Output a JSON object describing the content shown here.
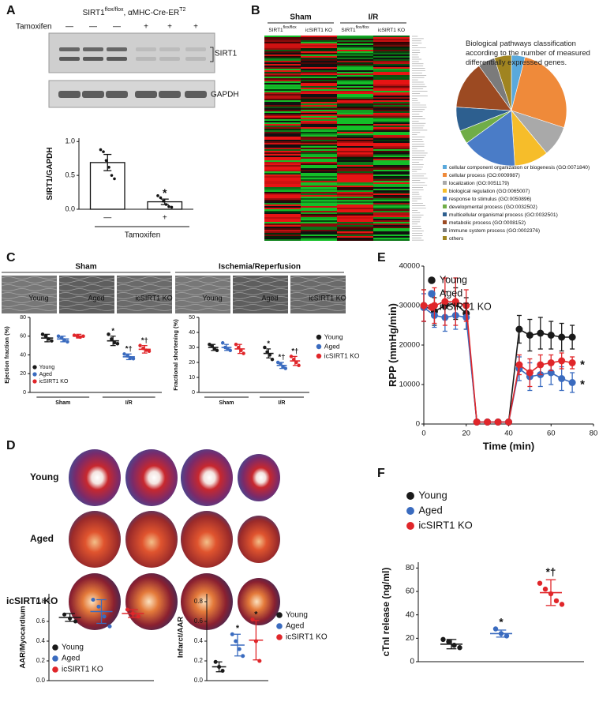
{
  "panel_labels": [
    "A",
    "B",
    "C",
    "D",
    "E",
    "F"
  ],
  "blot": {
    "header": [
      "SIRT1",
      "flox/flox",
      ", αMHC-Cre-ER",
      "T2"
    ],
    "tamoxifen_label": "Tamoxifen",
    "lanes": [
      "—",
      "—",
      "—",
      "+",
      "+",
      "+"
    ],
    "bands": [
      "SIRT1",
      "GAPDH"
    ]
  },
  "heatmap": {
    "groups": [
      "Sham",
      "I/R"
    ],
    "columns": [
      [
        "SIRT1",
        "flox/flox"
      ],
      [
        "icSIRT1 KO"
      ],
      [
        "SIRT1",
        "flox/flox"
      ],
      [
        "icSIRT1 KO"
      ]
    ]
  },
  "echo": {
    "groups": [
      "Sham",
      "Ischemia/Reperfusion"
    ],
    "labels": [
      "Young",
      "Aged",
      "icSIRT1 KO"
    ]
  },
  "hearts": {
    "rows": [
      "Young",
      "Aged",
      "icSIRT1 KO"
    ]
  },
  "chart_data": [
    {
      "type": "bar",
      "ylabel": "SIRT1/GAPDH",
      "xlabel": "Tamoxifen",
      "categories": [
        "—",
        "+"
      ],
      "values": [
        0.69,
        0.11
      ],
      "errors": [
        0.12,
        0.04
      ],
      "points": [
        [
          0.88,
          0.85,
          0.72,
          0.62,
          0.5,
          0.45
        ],
        [
          0.2,
          0.17,
          0.12,
          0.07,
          0.04,
          0.03
        ]
      ],
      "annotations": [
        null,
        "*"
      ],
      "color": "#ffffff",
      "ylim": [
        0,
        1.05
      ],
      "yticks": [
        {
          "value": 0,
          "label": "0.0"
        },
        0.5,
        {
          "value": 1,
          "label": "1.0"
        }
      ]
    },
    {
      "type": "pie",
      "title": "Biological pathways classification according to the number of measured differentially expressed genes.",
      "categories": [
        "cellular component organization or biogenesis (GO:0071840)",
        "cellular process (GO:0009987)",
        "localization (GO:0051179)",
        "biological regulation (GO:0065007)",
        "response to stimulus (GO:0050896)",
        "developmental process (GO:0032502)",
        "multicellular organismal process (GO:0032501)",
        "metabolic process (GO:0008152)",
        "immune system process (GO:0002376)",
        "others"
      ],
      "values": [
        4,
        26,
        9,
        10,
        16,
        4,
        7,
        14,
        5,
        5
      ],
      "colors": [
        "#5aa9dc",
        "#ef8a3a",
        "#a9a9a9",
        "#f6bd2a",
        "#4a7cc7",
        "#70ad47",
        "#2d5f8f",
        "#9c4a22",
        "#7b7b7b",
        "#a08420"
      ]
    },
    {
      "type": "dot",
      "ylabel": "Ejection fraction (%)",
      "categories": [
        "Sham",
        "I/R"
      ],
      "ylim": [
        0,
        80
      ],
      "yticks": [
        0,
        20,
        40,
        60,
        80
      ],
      "legend": "lower left",
      "series": [
        {
          "name": "Young",
          "color": "#1a1a1a",
          "values": [
            58,
            55
          ],
          "errors": [
            4,
            5
          ],
          "points": [
            [
              62,
              60,
              57,
              55
            ],
            [
              62,
              57,
              53,
              52
            ]
          ],
          "annotations": [
            null,
            "*"
          ]
        },
        {
          "name": "Aged",
          "color": "#3a6bbf",
          "values": [
            57,
            38
          ],
          "errors": [
            3,
            3
          ],
          "points": [
            [
              60,
              58,
              56,
              54
            ],
            [
              41,
              39,
              37,
              36
            ]
          ],
          "annotations": [
            null,
            "*†"
          ]
        },
        {
          "name": "icSIRT1 KO",
          "color": "#e0262a",
          "values": [
            60,
            46
          ],
          "errors": [
            2,
            4
          ],
          "points": [
            [
              61,
              60,
              59,
              60
            ],
            [
              50,
              47,
              45,
              44
            ]
          ],
          "annotations": [
            null,
            "*†"
          ]
        }
      ]
    },
    {
      "type": "dot",
      "ylabel": "Fractional shortening (%)",
      "categories": [
        "Sham",
        "I/R"
      ],
      "ylim": [
        0,
        50
      ],
      "yticks": [
        0,
        10,
        20,
        30,
        40,
        50
      ],
      "legend": "right",
      "series": [
        {
          "name": "Young",
          "color": "#1a1a1a",
          "values": [
            30,
            26
          ],
          "errors": [
            2,
            3
          ],
          "points": [
            [
              32,
              31,
              29,
              28
            ],
            [
              30,
              27,
              25,
              22
            ]
          ],
          "annotations": [
            null,
            "*"
          ]
        },
        {
          "name": "Aged",
          "color": "#3a6bbf",
          "values": [
            30,
            18
          ],
          "errors": [
            2,
            2
          ],
          "points": [
            [
              33,
              30,
              29,
              28
            ],
            [
              20,
              19,
              17,
              16
            ]
          ],
          "annotations": [
            null,
            "*†"
          ]
        },
        {
          "name": "icSIRT1 KO",
          "color": "#e0262a",
          "values": [
            29,
            21
          ],
          "errors": [
            3,
            3
          ],
          "points": [
            [
              32,
              30,
              28,
              26
            ],
            [
              24,
              22,
              20,
              18
            ]
          ],
          "annotations": [
            null,
            "*†"
          ]
        }
      ]
    },
    {
      "type": "dot",
      "ylabel": "AAR/Myocardium",
      "categories": [
        null
      ],
      "ylim": [
        0,
        0.88
      ],
      "yticks": [
        {
          "value": 0,
          "label": "0.0"
        },
        0.2,
        0.4,
        0.6,
        0.8
      ],
      "legend": "lower left",
      "series": [
        {
          "name": "Young",
          "color": "#1a1a1a",
          "values": [
            0.64
          ],
          "errors": [
            0.04
          ],
          "points": [
            [
              0.67,
              0.63,
              0.6
            ]
          ],
          "annotations": [
            null
          ]
        },
        {
          "name": "Aged",
          "color": "#3a6bbf",
          "values": [
            0.7
          ],
          "errors": [
            0.12
          ],
          "points": [
            [
              0.82,
              0.75,
              0.65,
              0.55
            ]
          ],
          "annotations": [
            null
          ]
        },
        {
          "name": "icSIRT1 KO",
          "color": "#e0262a",
          "values": [
            0.68
          ],
          "errors": [
            0.04
          ],
          "points": [
            [
              0.72,
              0.68,
              0.65
            ]
          ],
          "annotations": [
            null
          ]
        }
      ]
    },
    {
      "type": "dot",
      "ylabel": "Infarct/AAR",
      "categories": [
        null
      ],
      "ylim": [
        0,
        0.88
      ],
      "yticks": [
        {
          "value": 0,
          "label": "0.0"
        },
        0.2,
        0.4,
        0.6,
        0.8
      ],
      "legend": "right",
      "series": [
        {
          "name": "Young",
          "color": "#1a1a1a",
          "values": [
            0.14
          ],
          "errors": [
            0.05
          ],
          "points": [
            [
              0.19,
              0.14,
              0.1
            ]
          ],
          "annotations": [
            null
          ]
        },
        {
          "name": "Aged",
          "color": "#3a6bbf",
          "values": [
            0.36
          ],
          "errors": [
            0.11
          ],
          "points": [
            [
              0.47,
              0.4,
              0.32,
              0.25
            ]
          ],
          "annotations": [
            "*"
          ]
        },
        {
          "name": "icSIRT1 KO",
          "color": "#e0262a",
          "values": [
            0.41
          ],
          "errors": [
            0.2
          ],
          "points": [
            [
              0.62,
              0.4,
              0.2
            ]
          ],
          "annotations": [
            "*"
          ]
        }
      ]
    },
    {
      "type": "line",
      "ylabel": "RPP (mmHg/min)",
      "xlabel": "Time (min)",
      "x": [
        0,
        5,
        10,
        15,
        20,
        25,
        30,
        35,
        40,
        45,
        50,
        55,
        60,
        65,
        70
      ],
      "xlim": [
        0,
        80
      ],
      "xticks": [
        0,
        20,
        40,
        60,
        80
      ],
      "ylim": [
        0,
        40000
      ],
      "yticks": [
        0,
        10000,
        20000,
        30000,
        40000
      ],
      "legend": "upper left",
      "series": [
        {
          "name": "Young",
          "color": "#1a1a1a",
          "values": [
            30000,
            28500,
            30000,
            30500,
            28000,
            500,
            500,
            500,
            500,
            24000,
            22500,
            23000,
            22500,
            22000,
            22000
          ],
          "errors": [
            4000,
            3500,
            3500,
            4000,
            4000,
            300,
            300,
            300,
            300,
            3500,
            4000,
            4000,
            3500,
            3500,
            3000
          ]
        },
        {
          "name": "Aged",
          "color": "#3a6bbf",
          "values": [
            29500,
            27500,
            27000,
            27500,
            27000,
            500,
            500,
            500,
            500,
            14000,
            12000,
            12500,
            13000,
            11500,
            10500
          ],
          "errors": [
            3500,
            3000,
            3500,
            3500,
            3000,
            300,
            300,
            300,
            300,
            3000,
            3500,
            3000,
            3000,
            3000,
            2500
          ],
          "annotation": "*"
        },
        {
          "name": "icSIRT1 KO",
          "color": "#e0262a",
          "values": [
            30000,
            30000,
            31000,
            31000,
            30000,
            500,
            500,
            500,
            500,
            15000,
            13000,
            15000,
            15500,
            16000,
            15500
          ],
          "errors": [
            4000,
            4500,
            6000,
            6000,
            4000,
            300,
            300,
            300,
            300,
            2500,
            3500,
            2500,
            2000,
            2000,
            1500
          ],
          "annotation": "*"
        }
      ]
    },
    {
      "type": "dot",
      "ylabel": "cTnI release (ng/ml)",
      "categories": [
        null
      ],
      "ylim": [
        0,
        85
      ],
      "yticks": [
        0,
        20,
        40,
        60,
        80
      ],
      "legend": "upper left",
      "series": [
        {
          "name": "Young",
          "color": "#1a1a1a",
          "values": [
            15
          ],
          "errors": [
            4
          ],
          "points": [
            [
              19,
              17,
              14,
              12
            ]
          ],
          "annotations": [
            null
          ]
        },
        {
          "name": "Aged",
          "color": "#3a6bbf",
          "values": [
            24
          ],
          "errors": [
            3
          ],
          "points": [
            [
              28,
              24,
              22
            ]
          ],
          "annotations": [
            "*"
          ]
        },
        {
          "name": "icSIRT1 KO",
          "color": "#e0262a",
          "values": [
            59
          ],
          "errors": [
            11
          ],
          "points": [
            [
              67,
              62,
              58,
              52,
              49
            ]
          ],
          "annotations": [
            "*†"
          ]
        }
      ]
    }
  ]
}
